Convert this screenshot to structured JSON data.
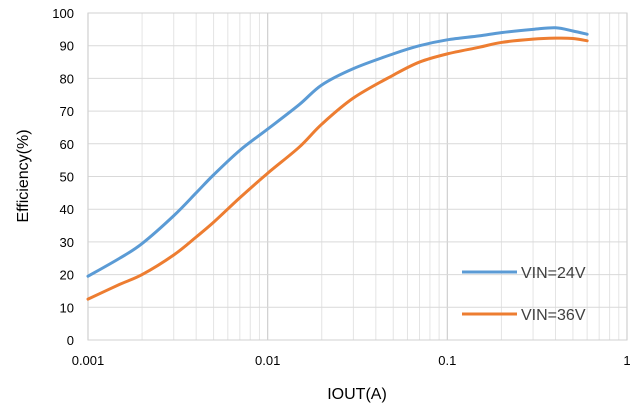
{
  "chart_data": {
    "type": "line",
    "xlabel": "IOUT(A)",
    "ylabel": "Efficiency(%)",
    "xscale": "log",
    "xlim": [
      0.001,
      1
    ],
    "ylim": [
      0,
      100
    ],
    "x_ticks": [
      0.001,
      0.01,
      0.1,
      1
    ],
    "x_tick_labels": [
      "0.001",
      "0.01",
      "0.1",
      "1"
    ],
    "y_ticks": [
      0,
      10,
      20,
      30,
      40,
      50,
      60,
      70,
      80,
      90,
      100
    ],
    "y_tick_labels": [
      "0",
      "10",
      "20",
      "30",
      "40",
      "50",
      "60",
      "70",
      "80",
      "90",
      "100"
    ],
    "grid": true,
    "legend_position": "bottom-right",
    "series": [
      {
        "name": "VIN=24V",
        "color": "#5b9bd5",
        "points": [
          [
            0.001,
            19.5
          ],
          [
            0.0015,
            25
          ],
          [
            0.002,
            29.5
          ],
          [
            0.003,
            38
          ],
          [
            0.004,
            45
          ],
          [
            0.005,
            50.5
          ],
          [
            0.007,
            58
          ],
          [
            0.01,
            64.5
          ],
          [
            0.015,
            72
          ],
          [
            0.02,
            78
          ],
          [
            0.03,
            83
          ],
          [
            0.05,
            87.5
          ],
          [
            0.07,
            90
          ],
          [
            0.1,
            91.8
          ],
          [
            0.15,
            93
          ],
          [
            0.2,
            94
          ],
          [
            0.3,
            95
          ],
          [
            0.4,
            95.5
          ],
          [
            0.5,
            94.5
          ],
          [
            0.6,
            93.5
          ]
        ]
      },
      {
        "name": "VIN=36V",
        "color": "#ed7d31",
        "points": [
          [
            0.001,
            12.5
          ],
          [
            0.0015,
            17
          ],
          [
            0.002,
            20
          ],
          [
            0.003,
            26
          ],
          [
            0.004,
            31.5
          ],
          [
            0.005,
            36
          ],
          [
            0.007,
            43.5
          ],
          [
            0.01,
            51
          ],
          [
            0.015,
            59
          ],
          [
            0.02,
            66
          ],
          [
            0.03,
            74
          ],
          [
            0.05,
            81
          ],
          [
            0.07,
            85
          ],
          [
            0.1,
            87.5
          ],
          [
            0.15,
            89.5
          ],
          [
            0.2,
            91
          ],
          [
            0.3,
            92
          ],
          [
            0.4,
            92.3
          ],
          [
            0.5,
            92.2
          ],
          [
            0.6,
            91.5
          ]
        ]
      }
    ]
  }
}
